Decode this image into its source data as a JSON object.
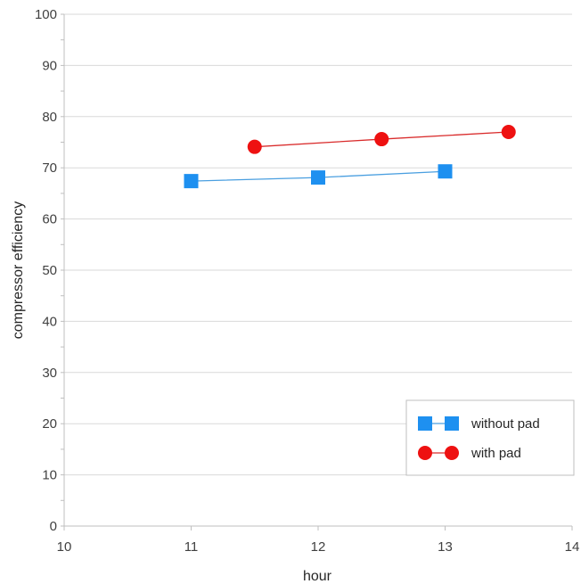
{
  "chart_data": {
    "type": "line",
    "title": "",
    "xlabel": "hour",
    "ylabel": "compressor efficiency",
    "xlim": [
      10,
      14
    ],
    "ylim": [
      0,
      100
    ],
    "xticks": [
      "10",
      "11",
      "12",
      "13",
      "14"
    ],
    "yticks": [
      "0",
      "10",
      "20",
      "30",
      "40",
      "50",
      "60",
      "70",
      "80",
      "90",
      "100"
    ],
    "grid": "horizontal",
    "legend_position": "bottom-right",
    "series": [
      {
        "name": "without pad",
        "marker": "square",
        "color": "#1e90f0",
        "line_color": "#4a9fe0",
        "points": [
          {
            "x": 11,
            "y": 67.4
          },
          {
            "x": 12,
            "y": 68.1
          },
          {
            "x": 13,
            "y": 69.3
          }
        ]
      },
      {
        "name": "with pad",
        "marker": "circle",
        "color": "#ee1111",
        "line_color": "#d92b2b",
        "points": [
          {
            "x": 11.5,
            "y": 74.1
          },
          {
            "x": 12.5,
            "y": 75.6
          },
          {
            "x": 13.5,
            "y": 77.0
          }
        ]
      }
    ]
  }
}
